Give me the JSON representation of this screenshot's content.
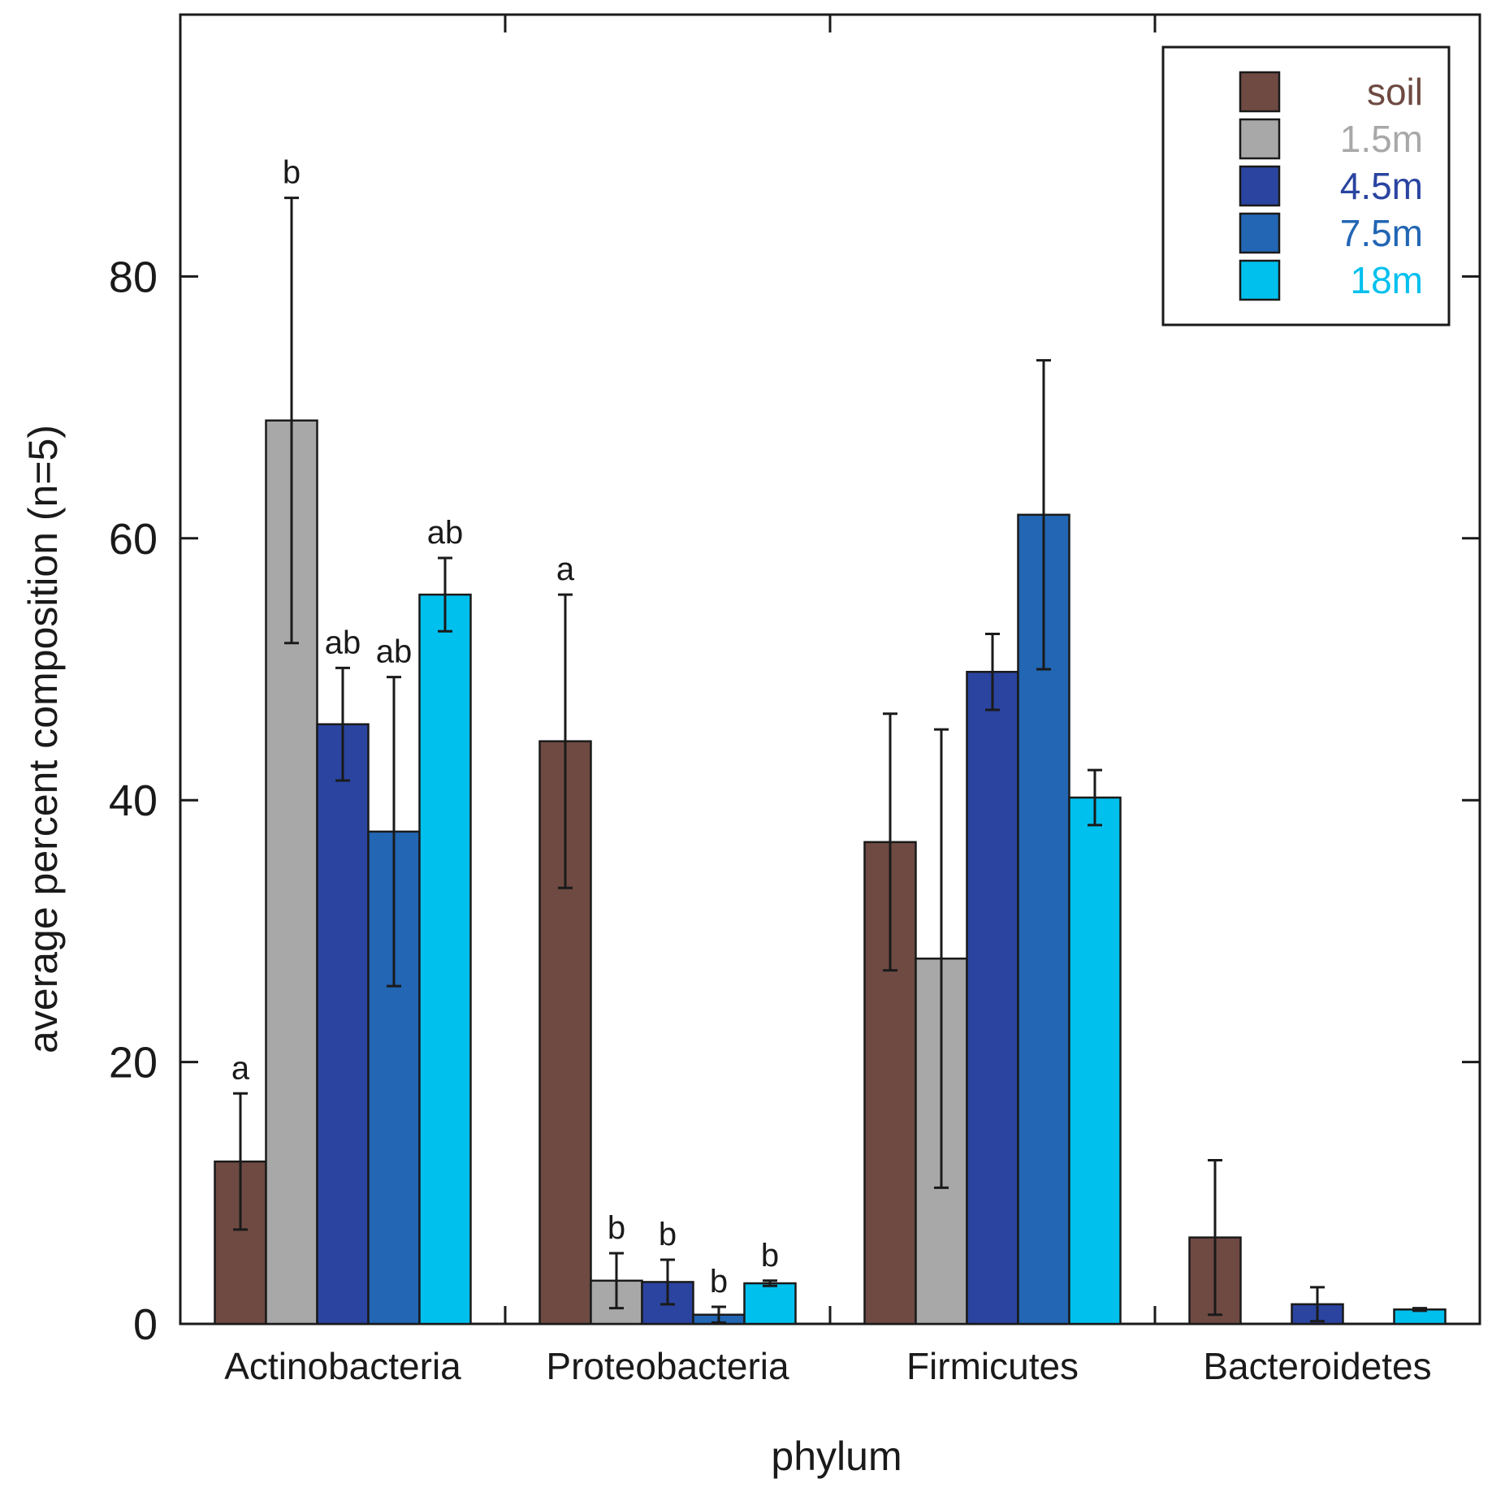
{
  "chart_data": {
    "type": "bar",
    "title": "",
    "xlabel": "phylum",
    "ylabel": "average percent composition (n=5)",
    "ylim": [
      0,
      100
    ],
    "yticks": [
      0,
      20,
      40,
      60,
      80
    ],
    "categories": [
      "Actinobacteria",
      "Proteobacteria",
      "Firmicutes",
      "Bacteroidetes"
    ],
    "series": [
      {
        "name": "soil",
        "color": "#6e4a42",
        "values": [
          12.4,
          44.5,
          36.8,
          6.6
        ],
        "errors": [
          5.2,
          11.2,
          9.8,
          5.9
        ],
        "labels": [
          "a",
          "a",
          "",
          ""
        ]
      },
      {
        "name": "1.5m",
        "color": "#a8a8a8",
        "values": [
          69,
          3.3,
          27.9,
          0
        ],
        "errors": [
          17,
          2.1,
          17.5,
          0
        ],
        "labels": [
          "b",
          "b",
          "",
          ""
        ]
      },
      {
        "name": "4.5m",
        "color": "#2a44a0",
        "values": [
          45.8,
          3.2,
          49.8,
          1.5
        ],
        "errors": [
          4.3,
          1.7,
          2.9,
          1.3
        ],
        "labels": [
          "ab",
          "b",
          "",
          ""
        ]
      },
      {
        "name": "7.5m",
        "color": "#2266b4",
        "values": [
          37.6,
          0.7,
          61.8,
          0
        ],
        "errors": [
          11.8,
          0.6,
          11.8,
          0
        ],
        "labels": [
          "ab",
          "b",
          "",
          ""
        ]
      },
      {
        "name": "18m",
        "color": "#00c0ee",
        "values": [
          55.7,
          3.1,
          40.2,
          1.1
        ],
        "errors": [
          2.8,
          0.2,
          2.1,
          0.1
        ],
        "labels": [
          "ab",
          "b",
          "",
          ""
        ]
      }
    ],
    "legend": {
      "placement": "top-right"
    },
    "grid": false
  }
}
